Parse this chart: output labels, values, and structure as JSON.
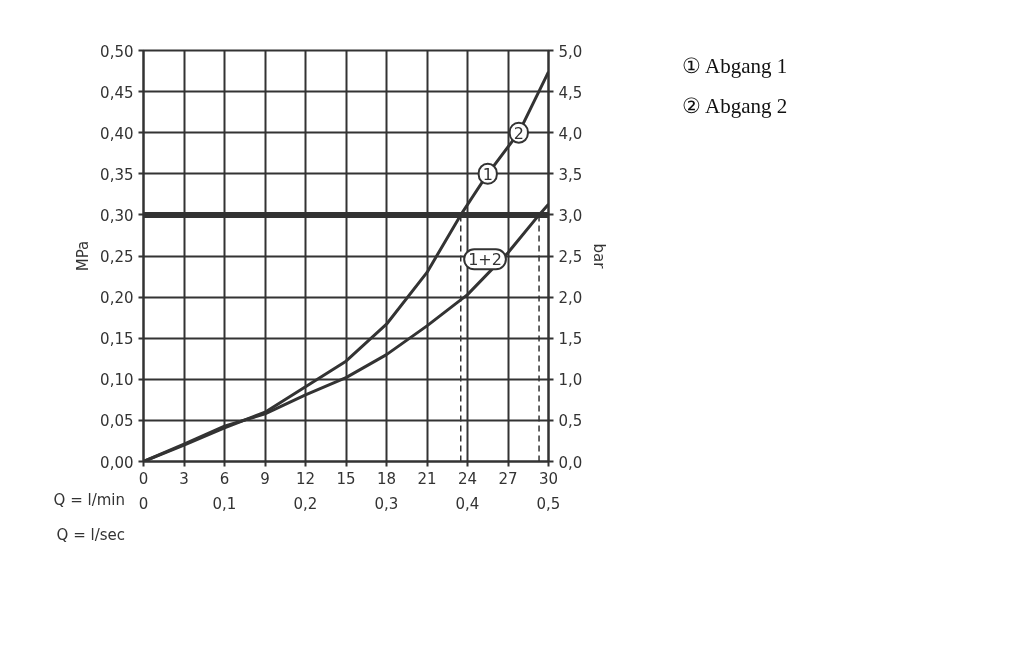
{
  "chart_data": {
    "type": "line",
    "xlabel": "Q = l/min",
    "x2label": "Q = l/sec",
    "ylabel": "MPa",
    "y2label": "bar",
    "x": [
      0,
      3,
      6,
      9,
      12,
      15,
      18,
      21,
      23.5,
      25.5,
      27.8,
      30
    ],
    "series": [
      {
        "color": "#333333",
        "values": [
          0,
          0.02,
          0.041,
          0.06,
          0.091,
          0.122,
          0.167,
          0.23,
          0.3,
          0.35,
          0.4,
          0.474
        ]
      },
      {
        "color": "#333333",
        "x": [
          0,
          3,
          6,
          9,
          12,
          15,
          18,
          21,
          24,
          27,
          29.3,
          30
        ],
        "values": [
          0,
          0.021,
          0.043,
          0.058,
          0.081,
          0.102,
          0.13,
          0.165,
          0.203,
          0.254,
          0.3,
          0.313
        ]
      }
    ],
    "xlim": [
      0,
      30
    ],
    "xticks": [
      0,
      3,
      6,
      9,
      12,
      15,
      18,
      21,
      24,
      27,
      30
    ],
    "x2lim": [
      0,
      0.5
    ],
    "x2ticks": [
      {
        "value": 0,
        "label": "0"
      },
      {
        "value": 0.1,
        "label": "0,1"
      },
      {
        "value": 0.2,
        "label": "0,2"
      },
      {
        "value": 0.3,
        "label": "0,3"
      },
      {
        "value": 0.4,
        "label": "0,4"
      },
      {
        "value": 0.5,
        "label": "0,5"
      }
    ],
    "ylim": [
      0,
      0.5
    ],
    "yticks": [
      {
        "value": 0,
        "label": "0,00"
      },
      {
        "value": 0.05,
        "label": "0,05"
      },
      {
        "value": 0.1,
        "label": "0,10"
      },
      {
        "value": 0.15,
        "label": "0,15"
      },
      {
        "value": 0.2,
        "label": "0,20"
      },
      {
        "value": 0.25,
        "label": "0,25"
      },
      {
        "value": 0.3,
        "label": "0,30"
      },
      {
        "value": 0.35,
        "label": "0,35"
      },
      {
        "value": 0.4,
        "label": "0,40"
      },
      {
        "value": 0.45,
        "label": "0,45"
      },
      {
        "value": 0.5,
        "label": "0,50"
      }
    ],
    "y2lim": [
      0,
      5
    ],
    "y2ticks": [
      {
        "value": 0,
        "label": "0,0"
      },
      {
        "value": 0.5,
        "label": "0,5"
      },
      {
        "value": 1,
        "label": "1,0"
      },
      {
        "value": 1.5,
        "label": "1,5"
      },
      {
        "value": 2,
        "label": "2,0"
      },
      {
        "value": 2.5,
        "label": "2,5"
      },
      {
        "value": 3,
        "label": "3,0"
      },
      {
        "value": 3.5,
        "label": "3,5"
      },
      {
        "value": 4,
        "label": "4,0"
      },
      {
        "value": 4.5,
        "label": "4,5"
      },
      {
        "value": 5,
        "label": "5,0"
      }
    ],
    "grid": true,
    "line_style": "solid",
    "marker": "none",
    "ref_lines": [
      {
        "axis": "y",
        "value": 0.3,
        "color": "#333333",
        "line_style": "solid"
      },
      {
        "axis": "x",
        "value": 23.5,
        "color": "#333333",
        "line_style": "dashed"
      },
      {
        "axis": "x",
        "value": 29.3,
        "color": "#333333",
        "line_style": "dashed"
      }
    ],
    "annotations": [
      {
        "text": "1",
        "x": 25.5,
        "y": 0.35
      },
      {
        "text": "2",
        "x": 27.8,
        "y": 0.4
      },
      {
        "text": "1+2",
        "x": 25.3,
        "y": 0.246
      },
      "① Abgang 1",
      "② Abgang 2"
    ]
  }
}
